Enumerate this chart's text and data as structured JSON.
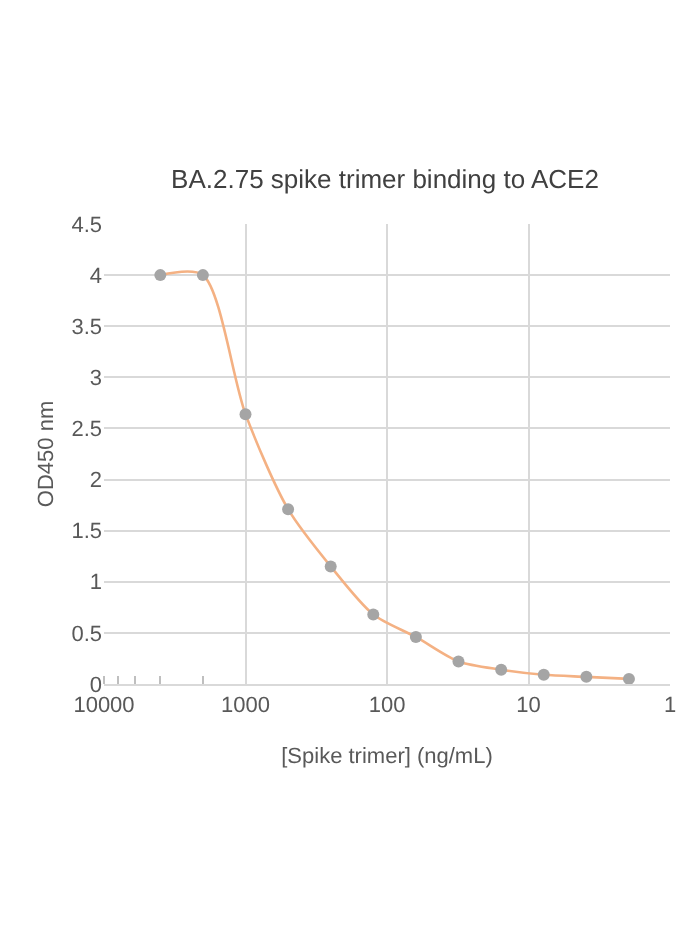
{
  "chart_data": {
    "type": "line",
    "title": "BA.2.75 spike trimer binding to ACE2",
    "xlabel": "[Spike trimer] (ng/mL)",
    "ylabel": "OD450 nm",
    "x": [
      4000,
      2000,
      1000,
      500,
      250,
      125,
      62.5,
      31.25,
      15.6,
      7.8,
      3.9,
      1.95
    ],
    "series": [
      {
        "color": "#f4b183",
        "marker": "none",
        "values": [
          4.0,
          4.0,
          2.64,
          1.71,
          1.15,
          0.68,
          0.46,
          0.22,
          0.14,
          0.09,
          0.07,
          0.05
        ]
      },
      {
        "type": "scatter",
        "color": "#a5a5a5",
        "marker": "circle",
        "values": [
          4.0,
          4.0,
          2.64,
          1.71,
          1.15,
          0.68,
          0.46,
          0.22,
          0.14,
          0.09,
          0.07,
          0.05
        ]
      }
    ],
    "log": "x",
    "xlim": [
      10000,
      1
    ],
    "xticks": [
      10000,
      1000,
      100,
      10,
      1
    ],
    "ylim": [
      0,
      4.5
    ],
    "yticks": [
      0,
      0.5,
      1,
      1.5,
      2,
      2.5,
      3,
      3.5,
      4,
      4.5
    ],
    "grid": true
  }
}
